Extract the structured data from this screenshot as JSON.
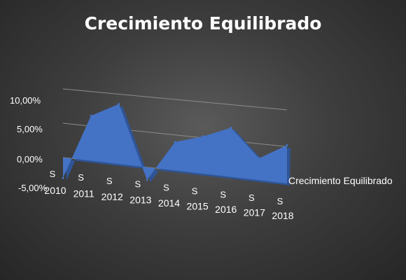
{
  "chart_data": {
    "type": "area",
    "title": "Crecimiento Equilibrado",
    "categories": [
      "2010",
      "2011",
      "2012",
      "2013",
      "2014",
      "2015",
      "2016",
      "2017",
      "2018"
    ],
    "series": [
      {
        "name": "Crecimiento Equilibrado",
        "values": [
          -3.0,
          6.5,
          8.6,
          -1.8,
          4.0,
          5.2,
          6.8,
          3.0,
          5.2
        ]
      }
    ],
    "y_tick_labels": [
      "10,00%",
      "5,00%",
      "0,00%",
      "-5,00%"
    ],
    "category_marker": "S",
    "ylim": [
      -5,
      10
    ],
    "grid": true,
    "legend": "right",
    "colors": {
      "fill": "#4472c4",
      "fill_dark": "#2f5597",
      "grid": "#8c8c8c",
      "text": "#ffffff"
    }
  }
}
